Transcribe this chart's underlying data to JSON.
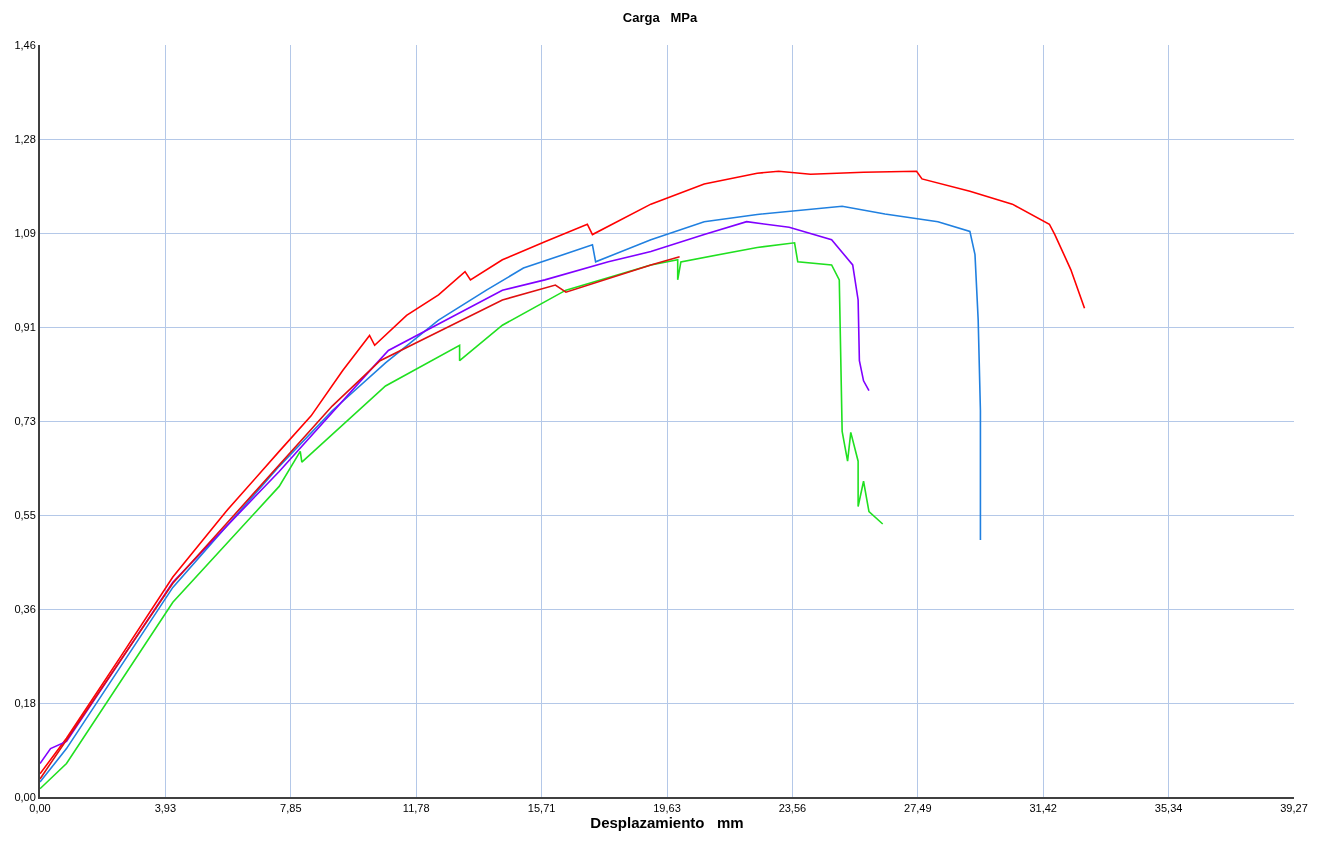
{
  "chart_data": {
    "type": "line",
    "title": "Carga   MPa",
    "xlabel": "Desplazamiento   mm",
    "xlim": [
      0,
      39.27
    ],
    "ylim": [
      0,
      1.46
    ],
    "xticks": [
      {
        "value": 0,
        "label": "0,00"
      },
      {
        "value": 3.927,
        "label": "3,93"
      },
      {
        "value": 7.854,
        "label": "7,85"
      },
      {
        "value": 11.781,
        "label": "11,78"
      },
      {
        "value": 15.708,
        "label": "15,71"
      },
      {
        "value": 19.635,
        "label": "19,63"
      },
      {
        "value": 23.562,
        "label": "23,56"
      },
      {
        "value": 27.489,
        "label": "27,49"
      },
      {
        "value": 31.416,
        "label": "31,42"
      },
      {
        "value": 35.343,
        "label": "35,34"
      },
      {
        "value": 39.27,
        "label": "39,27"
      }
    ],
    "yticks": [
      {
        "value": 0,
        "label": "0,00"
      },
      {
        "value": 0.1825,
        "label": "0,18"
      },
      {
        "value": 0.365,
        "label": "0,36"
      },
      {
        "value": 0.5475,
        "label": "0,55"
      },
      {
        "value": 0.73,
        "label": "0,73"
      },
      {
        "value": 0.9125,
        "label": "0,91"
      },
      {
        "value": 1.095,
        "label": "1,09"
      },
      {
        "value": 1.2775,
        "label": "1,28"
      },
      {
        "value": 1.46,
        "label": "1,46"
      }
    ],
    "grid": true,
    "marker": "none",
    "line_style": "solid",
    "series": [
      {
        "color": "#ff0000",
        "x": [
          0,
          0.83,
          2.5,
          4.16,
          5.82,
          7.49,
          8.49,
          9.48,
          10.32,
          10.48,
          11.48,
          12.48,
          13.31,
          13.48,
          14.48,
          15.81,
          17.14,
          17.3,
          19.13,
          20.8,
          22.46,
          23.13,
          24.13,
          25.79,
          27.45,
          27.62,
          29.12,
          30.45,
          31.61,
          31.78,
          32.28,
          32.71
        ],
        "values": [
          0.045,
          0.114,
          0.27,
          0.427,
          0.554,
          0.671,
          0.74,
          0.828,
          0.896,
          0.877,
          0.935,
          0.975,
          1.02,
          1.004,
          1.043,
          1.078,
          1.112,
          1.092,
          1.151,
          1.19,
          1.211,
          1.215,
          1.209,
          1.213,
          1.215,
          1.2,
          1.176,
          1.151,
          1.112,
          1.092,
          1.024,
          0.949
        ]
      },
      {
        "color": "#2080e0",
        "x": [
          0,
          0.83,
          4.16,
          7.49,
          9.15,
          10.82,
          12.48,
          13.98,
          15.14,
          17.3,
          17.4,
          19.13,
          20.8,
          22.46,
          25.12,
          26.46,
          28.12,
          29.12,
          29.28,
          29.38,
          29.45,
          29.45
        ],
        "values": [
          0.029,
          0.094,
          0.407,
          0.642,
          0.75,
          0.843,
          0.926,
          0.984,
          1.027,
          1.072,
          1.039,
          1.082,
          1.117,
          1.131,
          1.147,
          1.132,
          1.117,
          1.098,
          1.053,
          0.926,
          0.75,
          0.499
        ]
      },
      {
        "color": "#8000ff",
        "x": [
          0,
          0.33,
          0.83,
          4.16,
          7.49,
          10.48,
          10.91,
          14.48,
          15.81,
          17.8,
          19.13,
          20.8,
          22.13,
          23.46,
          24.79,
          25.45,
          25.62,
          25.66,
          25.79,
          25.96
        ],
        "values": [
          0.065,
          0.094,
          0.108,
          0.417,
          0.632,
          0.838,
          0.867,
          0.984,
          1.004,
          1.039,
          1.059,
          1.092,
          1.117,
          1.106,
          1.082,
          1.033,
          0.965,
          0.847,
          0.808,
          0.789
        ]
      },
      {
        "color": "#20e020",
        "x": [
          0,
          0.83,
          4.16,
          7.49,
          8.15,
          8.2,
          10.82,
          13.14,
          13.14,
          14.48,
          16.47,
          19.13,
          19.97,
          19.97,
          20.07,
          22.46,
          23.63,
          23.73,
          24.79,
          25.03,
          25.12,
          25.29,
          25.39,
          25.62,
          25.62,
          25.79,
          25.96,
          26.39
        ],
        "values": [
          0.016,
          0.065,
          0.378,
          0.603,
          0.671,
          0.65,
          0.798,
          0.877,
          0.847,
          0.916,
          0.984,
          1.033,
          1.043,
          1.004,
          1.039,
          1.067,
          1.076,
          1.039,
          1.033,
          1.004,
          0.71,
          0.652,
          0.708,
          0.652,
          0.564,
          0.613,
          0.554,
          0.53
        ]
      },
      {
        "color": "#e01010",
        "x": [
          0,
          4.16,
          9.15,
          10.65,
          14.48,
          16.14,
          16.47,
          19.13,
          20.03
        ],
        "values": [
          0.035,
          0.415,
          0.759,
          0.847,
          0.965,
          0.994,
          0.98,
          1.033,
          1.049
        ]
      }
    ]
  }
}
